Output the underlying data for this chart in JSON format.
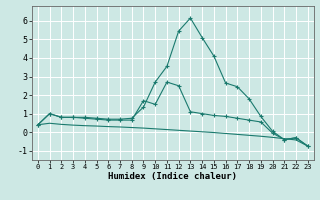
{
  "xlabel": "Humidex (Indice chaleur)",
  "background_color": "#cde8e4",
  "grid_color": "#ffffff",
  "line_color": "#1a7a6e",
  "xlim": [
    -0.5,
    23.5
  ],
  "ylim": [
    -1.5,
    6.8
  ],
  "xticks": [
    0,
    1,
    2,
    3,
    4,
    5,
    6,
    7,
    8,
    9,
    10,
    11,
    12,
    13,
    14,
    15,
    16,
    17,
    18,
    19,
    20,
    21,
    22,
    23
  ],
  "yticks": [
    -1,
    0,
    1,
    2,
    3,
    4,
    5,
    6
  ],
  "line1_x": [
    0,
    1,
    2,
    3,
    4,
    5,
    6,
    7,
    8,
    9,
    10,
    11,
    12,
    13,
    14,
    15,
    16,
    17,
    18,
    19,
    20,
    21,
    22,
    23
  ],
  "line1_y": [
    0.4,
    1.0,
    0.8,
    0.8,
    0.8,
    0.75,
    0.7,
    0.7,
    0.75,
    1.35,
    2.7,
    3.55,
    5.45,
    6.15,
    5.1,
    4.1,
    2.65,
    2.45,
    1.8,
    0.85,
    0.05,
    -0.4,
    -0.3,
    -0.75
  ],
  "line2_x": [
    0,
    1,
    2,
    3,
    4,
    5,
    6,
    7,
    8,
    9,
    10,
    11,
    12,
    13,
    14,
    15,
    16,
    17,
    18,
    19,
    20,
    21,
    22,
    23
  ],
  "line2_y": [
    0.4,
    1.0,
    0.8,
    0.8,
    0.75,
    0.7,
    0.65,
    0.65,
    0.65,
    1.7,
    1.5,
    2.7,
    2.5,
    1.1,
    1.0,
    0.9,
    0.85,
    0.75,
    0.65,
    0.55,
    -0.05,
    -0.4,
    -0.3,
    -0.75
  ],
  "line3_x": [
    0,
    1,
    2,
    3,
    4,
    5,
    6,
    7,
    8,
    9,
    10,
    11,
    12,
    13,
    14,
    15,
    16,
    17,
    18,
    19,
    20,
    21,
    22,
    23
  ],
  "line3_y": [
    0.4,
    0.48,
    0.42,
    0.38,
    0.35,
    0.33,
    0.3,
    0.28,
    0.25,
    0.22,
    0.18,
    0.14,
    0.1,
    0.06,
    0.02,
    -0.02,
    -0.07,
    -0.12,
    -0.17,
    -0.22,
    -0.28,
    -0.35,
    -0.42,
    -0.75
  ]
}
